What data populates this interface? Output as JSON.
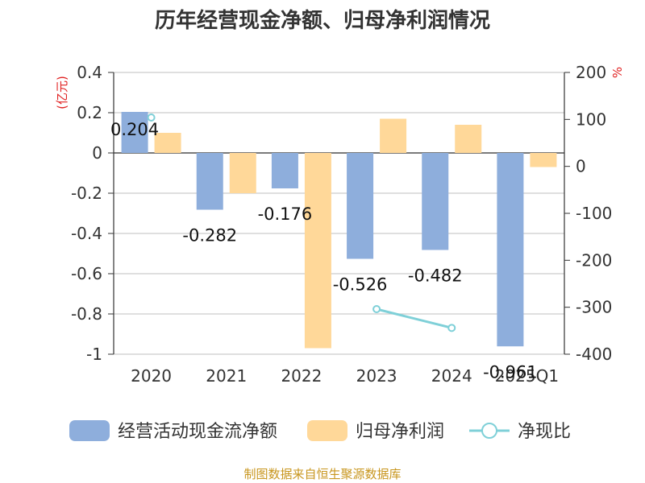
{
  "chart_data": {
    "type": "bar",
    "title": "历年经营现金净额、归母净利润情况",
    "left_unit": "(亿元)",
    "right_unit": "%",
    "categories": [
      "2020",
      "2021",
      "2022",
      "2023",
      "2024",
      "2025Q1"
    ],
    "left_ylim": [
      -1,
      0.4
    ],
    "left_ticks": [
      "0.4",
      "0.2",
      "0",
      "-0.2",
      "-0.4",
      "-0.6",
      "-0.8",
      "-1"
    ],
    "left_tick_values": [
      0.4,
      0.2,
      0,
      -0.2,
      -0.4,
      -0.6,
      -0.8,
      -1
    ],
    "right_ylim": [
      -400,
      200
    ],
    "right_ticks": [
      "200",
      "100",
      "0",
      "-100",
      "-200",
      "-300",
      "-400"
    ],
    "right_tick_values": [
      200,
      100,
      0,
      -100,
      -200,
      -300,
      -400
    ],
    "series": [
      {
        "name": "经营活动现金流净额",
        "type": "bar",
        "axis": "left",
        "color": "#8eaedc",
        "values": [
          0.204,
          -0.282,
          -0.176,
          -0.526,
          -0.482,
          -0.961
        ],
        "labels": [
          "0.204",
          "-0.282",
          "-0.176",
          "-0.526",
          "-0.482",
          "-0.961"
        ]
      },
      {
        "name": "归母净利润",
        "type": "bar",
        "axis": "left",
        "color": "#ffd899",
        "values": [
          0.1,
          -0.2,
          -0.97,
          0.17,
          0.14,
          -0.07
        ]
      },
      {
        "name": "净现比",
        "type": "line",
        "axis": "right",
        "color": "#7fd0d8",
        "values": [
          104,
          null,
          null,
          -304,
          -344,
          null
        ]
      }
    ],
    "source": "制图数据来自恒生聚源数据库"
  }
}
